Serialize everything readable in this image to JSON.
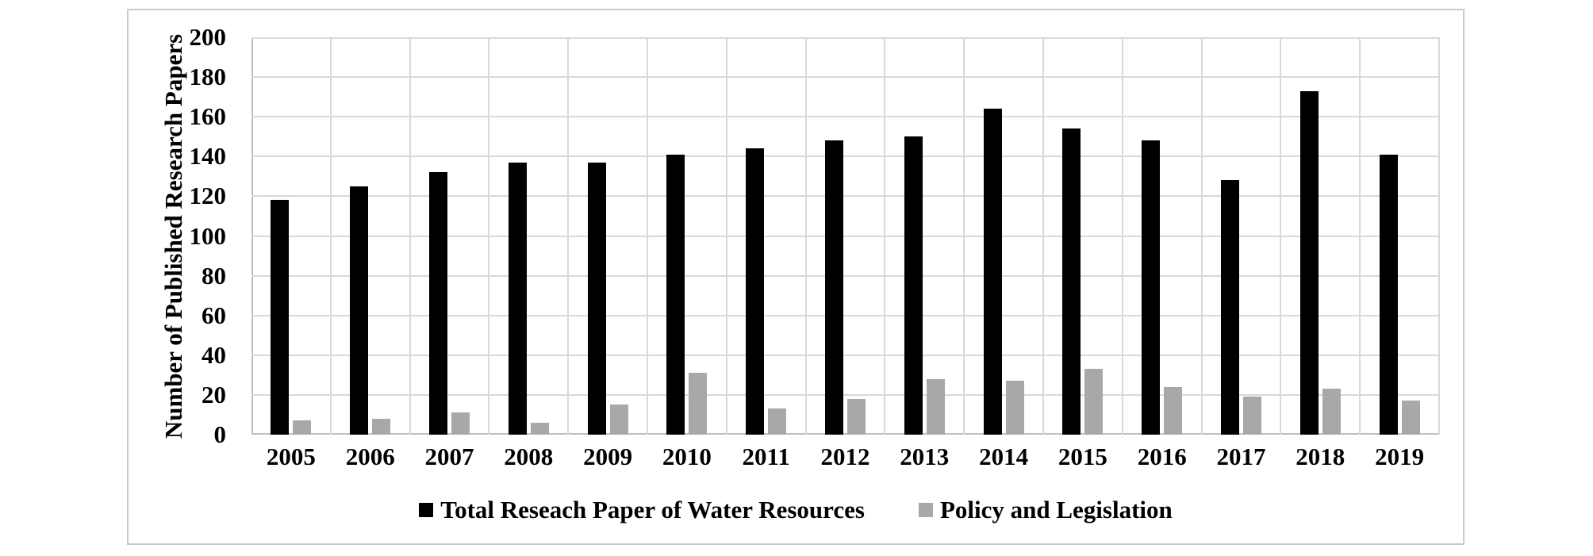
{
  "figure": {
    "y_axis_title": "Number of Published Research Papers",
    "yticks": [
      "0",
      "20",
      "40",
      "60",
      "80",
      "100",
      "120",
      "140",
      "160",
      "180",
      "200"
    ],
    "legend": [
      {
        "label": "Total Reseach Paper of Water Resources",
        "color": "#000000"
      },
      {
        "label": "Policy and Legislation",
        "color": "#a8a8a8"
      }
    ]
  },
  "chart_data": {
    "type": "bar",
    "categories": [
      "2005",
      "2006",
      "2007",
      "2008",
      "2009",
      "2010",
      "2011",
      "2012",
      "2013",
      "2014",
      "2015",
      "2016",
      "2017",
      "2018",
      "2019"
    ],
    "series": [
      {
        "name": "Total Reseach Paper of Water Resources",
        "color": "#000000",
        "values": [
          118,
          125,
          132,
          137,
          137,
          141,
          144,
          148,
          150,
          164,
          154,
          148,
          128,
          173,
          141
        ]
      },
      {
        "name": "Policy and Legislation",
        "color": "#a8a8a8",
        "values": [
          7,
          8,
          11,
          6,
          15,
          31,
          13,
          18,
          28,
          27,
          33,
          24,
          19,
          23,
          17
        ]
      }
    ],
    "title": "",
    "xlabel": "",
    "ylabel": "Number of Published Research Papers",
    "ylim": [
      0,
      200
    ],
    "ytick_step": 20,
    "grid": "horizontal major gridlines every 20 + vertical category-boundary gridlines",
    "gridline_color": "#d9d9d9",
    "axis_line_color": "#bfbfbf",
    "legend_position": "bottom-center"
  }
}
